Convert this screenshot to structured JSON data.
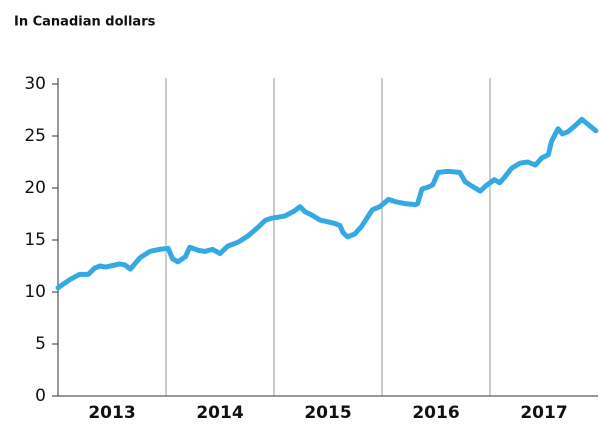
{
  "chart_data": {
    "type": "line",
    "subtitle": "In Canadian dollars",
    "x": [
      2013.0,
      2013.11,
      2013.2,
      2013.28,
      2013.34,
      2013.39,
      2013.44,
      2013.53,
      2013.57,
      2013.62,
      2013.67,
      2013.76,
      2013.85,
      2013.94,
      2014.02,
      2014.06,
      2014.11,
      2014.18,
      2014.22,
      2014.3,
      2014.36,
      2014.43,
      2014.5,
      2014.57,
      2014.67,
      2014.76,
      2014.85,
      2014.92,
      2014.98,
      2015.1,
      2015.19,
      2015.24,
      2015.29,
      2015.35,
      2015.43,
      2015.56,
      2015.61,
      2015.64,
      2015.68,
      2015.75,
      2015.81,
      2015.91,
      2015.98,
      2016.06,
      2016.12,
      2016.21,
      2016.31,
      2016.33,
      2016.37,
      2016.43,
      2016.47,
      2016.52,
      2016.61,
      2016.72,
      2016.77,
      2016.83,
      2016.91,
      2016.96,
      2017.04,
      2017.09,
      2017.14,
      2017.2,
      2017.28,
      2017.35,
      2017.42,
      2017.48,
      2017.54,
      2017.57,
      2017.63,
      2017.67,
      2017.72,
      2017.79,
      2017.85,
      2017.91,
      2017.98
    ],
    "series": [
      {
        "color": "#35a9e1",
        "values": [
          10.4,
          11.2,
          11.7,
          11.7,
          12.3,
          12.5,
          12.4,
          12.6,
          12.7,
          12.6,
          12.2,
          13.3,
          13.9,
          14.1,
          14.2,
          13.2,
          12.9,
          13.4,
          14.3,
          14.0,
          13.9,
          14.1,
          13.7,
          14.4,
          14.8,
          15.4,
          16.2,
          16.9,
          17.1,
          17.3,
          17.8,
          18.2,
          17.7,
          17.4,
          16.9,
          16.6,
          16.4,
          15.7,
          15.3,
          15.6,
          16.3,
          17.9,
          18.2,
          18.9,
          18.7,
          18.5,
          18.4,
          18.5,
          19.9,
          20.1,
          20.3,
          21.5,
          21.6,
          21.5,
          20.6,
          20.2,
          19.7,
          20.2,
          20.8,
          20.5,
          21.1,
          21.9,
          22.4,
          22.5,
          22.2,
          22.9,
          23.2,
          24.5,
          25.7,
          25.2,
          25.4,
          26.0,
          26.6,
          26.1,
          25.5
        ]
      }
    ],
    "xlim": [
      2013,
      2018
    ],
    "xticks": [
      {
        "value": 2013.5,
        "label": "2013"
      },
      {
        "value": 2014.5,
        "label": "2014"
      },
      {
        "value": 2015.5,
        "label": "2015"
      },
      {
        "value": 2016.5,
        "label": "2016"
      },
      {
        "value": 2017.5,
        "label": "2017"
      }
    ],
    "year_dividers": [
      2014,
      2015,
      2016,
      2017
    ],
    "ylim": [
      0,
      30
    ],
    "yticks": [
      0,
      5,
      10,
      15,
      20,
      25,
      30
    ]
  }
}
